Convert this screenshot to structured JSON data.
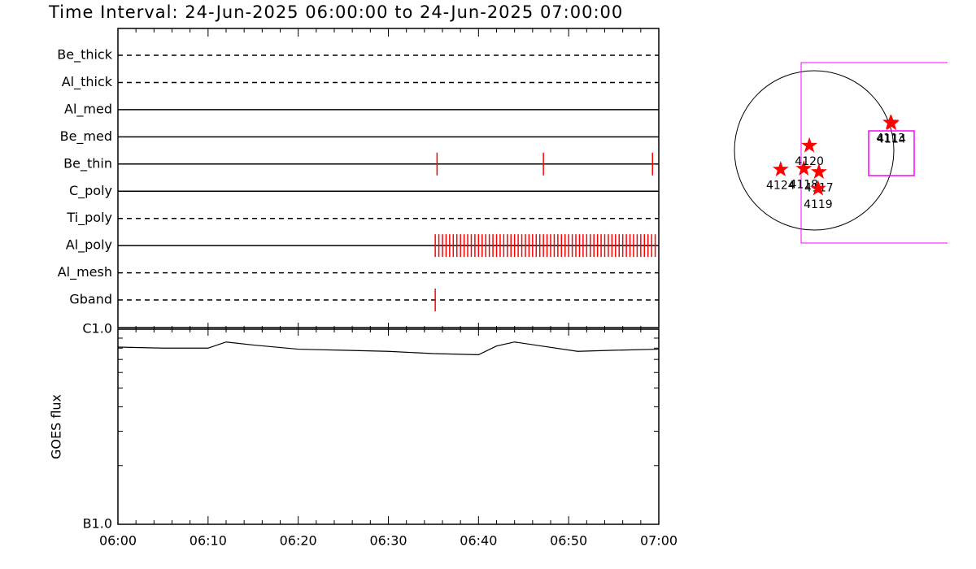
{
  "title": "Time Interval: 24-Jun-2025 06:00:00 to 24-Jun-2025 07:00:00",
  "chart_data": [
    {
      "type": "timeline",
      "color": "#ff0000",
      "xlim": [
        0,
        60
      ],
      "rows": [
        {
          "name": "Be_thick",
          "style": "dashed",
          "times": []
        },
        {
          "name": "Al_thick",
          "style": "dashed",
          "times": []
        },
        {
          "name": "Al_med",
          "style": "solid",
          "times": []
        },
        {
          "name": "Be_med",
          "style": "solid",
          "times": []
        },
        {
          "name": "Be_thin",
          "style": "solid",
          "times": [
            35.4,
            47.2,
            59.3
          ]
        },
        {
          "name": "C_poly",
          "style": "solid",
          "times": []
        },
        {
          "name": "Ti_poly",
          "style": "dashed",
          "times": []
        },
        {
          "name": "Al_poly",
          "style": "solid",
          "times": [
            35.2,
            35.6,
            36,
            36.4,
            36.8,
            37.2,
            37.6,
            38,
            38.4,
            38.8,
            39.2,
            39.6,
            40,
            40.4,
            40.8,
            41.2,
            41.6,
            42,
            42.4,
            42.8,
            43.2,
            43.6,
            44,
            44.4,
            44.8,
            45.2,
            45.6,
            46,
            46.4,
            46.8,
            47.2,
            47.6,
            48,
            48.4,
            48.8,
            49.2,
            49.6,
            50,
            50.4,
            50.8,
            51.2,
            51.6,
            52,
            52.4,
            52.8,
            53.2,
            53.6,
            54,
            54.4,
            54.8,
            55.2,
            55.6,
            56,
            56.4,
            56.8,
            57.2,
            57.6,
            58,
            58.4,
            58.8,
            59.2,
            59.6
          ]
        },
        {
          "name": "Al_mesh",
          "style": "dashed",
          "times": []
        },
        {
          "name": "Gband",
          "style": "dashed",
          "times": [
            35.2
          ]
        }
      ]
    },
    {
      "type": "line",
      "ylabel": "GOES flux",
      "log": true,
      "color": "#000000",
      "x": [
        0,
        5,
        10,
        12,
        15,
        20,
        25,
        30,
        35,
        40,
        42,
        44,
        47,
        51,
        55,
        60
      ],
      "values": [
        8.1e-07,
        8e-07,
        8e-07,
        8.6e-07,
        8.3e-07,
        7.9e-07,
        7.8e-07,
        7.7e-07,
        7.5e-07,
        7.4e-07,
        8.2e-07,
        8.6e-07,
        8.2e-07,
        7.7e-07,
        7.8e-07,
        7.9e-07
      ],
      "xlim": [
        0,
        60
      ],
      "xticks": [
        {
          "value": 0,
          "label": "06:00"
        },
        {
          "value": 10,
          "label": "06:10"
        },
        {
          "value": 20,
          "label": "06:20"
        },
        {
          "value": 30,
          "label": "06:30"
        },
        {
          "value": 40,
          "label": "06:40"
        },
        {
          "value": 50,
          "label": "06:50"
        },
        {
          "value": 60,
          "label": "07:00"
        }
      ],
      "xminor": [
        2,
        4,
        6,
        8,
        12,
        14,
        16,
        18,
        22,
        24,
        26,
        28,
        32,
        34,
        36,
        38,
        42,
        44,
        46,
        48,
        52,
        54,
        56,
        58
      ],
      "ylim": [
        1e-07,
        1e-06
      ],
      "yticks": [
        {
          "value": 1e-07,
          "label": "B1.0"
        },
        {
          "value": 1e-06,
          "label": "C1.0"
        }
      ],
      "yminor": [
        2e-07,
        3e-07,
        4e-07,
        5e-07,
        6e-07,
        7e-07,
        8e-07,
        9e-07
      ]
    },
    {
      "type": "scatter",
      "color": "#ff0000",
      "xlim": [
        -1,
        1
      ],
      "ylim": [
        -1,
        1
      ],
      "labels": [
        "4124",
        "4118",
        "4117",
        "4119",
        "4120",
        "4113",
        "4114"
      ],
      "x": [
        -0.42,
        -0.13,
        0.06,
        0.05,
        -0.06,
        0.96,
        0.97
      ],
      "y": [
        -0.24,
        -0.23,
        -0.27,
        -0.48,
        0.06,
        0.35,
        0.34
      ]
    }
  ]
}
